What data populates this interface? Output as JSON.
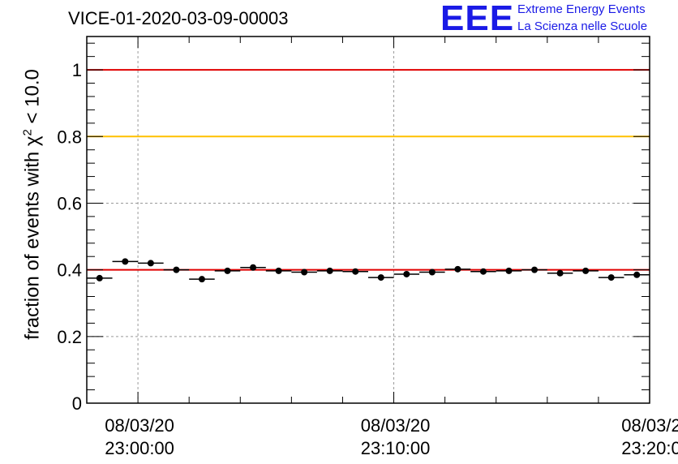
{
  "header": {
    "title": "VICE-01-2020-03-09-00003",
    "logo_text": "EEE",
    "logo_line1": "Extreme Energy Events",
    "logo_line2": "La Scienza nelle Scuole"
  },
  "chart_data": {
    "type": "scatter",
    "title": "VICE-01-2020-03-09-00003",
    "ylabel": {
      "prefix": "fraction of events with ",
      "symbol": "χ",
      "exponent": "2",
      "suffix": " < 10.0"
    },
    "xlabel": "",
    "x_unit": "minutes after 08/03/20 22:57:30",
    "xlim": [
      0,
      22
    ],
    "ylim": [
      0,
      1.1
    ],
    "y_ticks": [
      0,
      0.2,
      0.4,
      0.6,
      0.8,
      1
    ],
    "y_tick_labels": [
      "0",
      "0.2",
      "0.4",
      "0.6",
      "0.8",
      "1"
    ],
    "x_ticks": [
      {
        "x": 2,
        "line1": "08/03/20",
        "line2": "23:00:00"
      },
      {
        "x": 12,
        "line1": "08/03/20",
        "line2": "23:10:00"
      },
      {
        "x": 22,
        "line1": "08/03/2",
        "line2": "23:20:0"
      }
    ],
    "grid": true,
    "reference_lines": [
      {
        "y": 1.0,
        "color": "#e00000"
      },
      {
        "y": 0.8,
        "color": "#ffc000"
      },
      {
        "y": 0.4,
        "color": "#e00000"
      }
    ],
    "series": [
      {
        "bin_width": 1,
        "marker_color": "#000000",
        "x": [
          0.5,
          1.5,
          2.5,
          3.5,
          4.5,
          5.5,
          6.5,
          7.5,
          8.5,
          9.5,
          10.5,
          11.5,
          12.5,
          13.5,
          14.5,
          15.5,
          16.5,
          17.5,
          18.5,
          19.5,
          20.5,
          21.5
        ],
        "y": [
          0.375,
          0.425,
          0.42,
          0.4,
          0.372,
          0.397,
          0.407,
          0.397,
          0.393,
          0.397,
          0.395,
          0.377,
          0.387,
          0.393,
          0.402,
          0.395,
          0.397,
          0.4,
          0.39,
          0.397,
          0.377,
          0.385
        ]
      }
    ]
  }
}
